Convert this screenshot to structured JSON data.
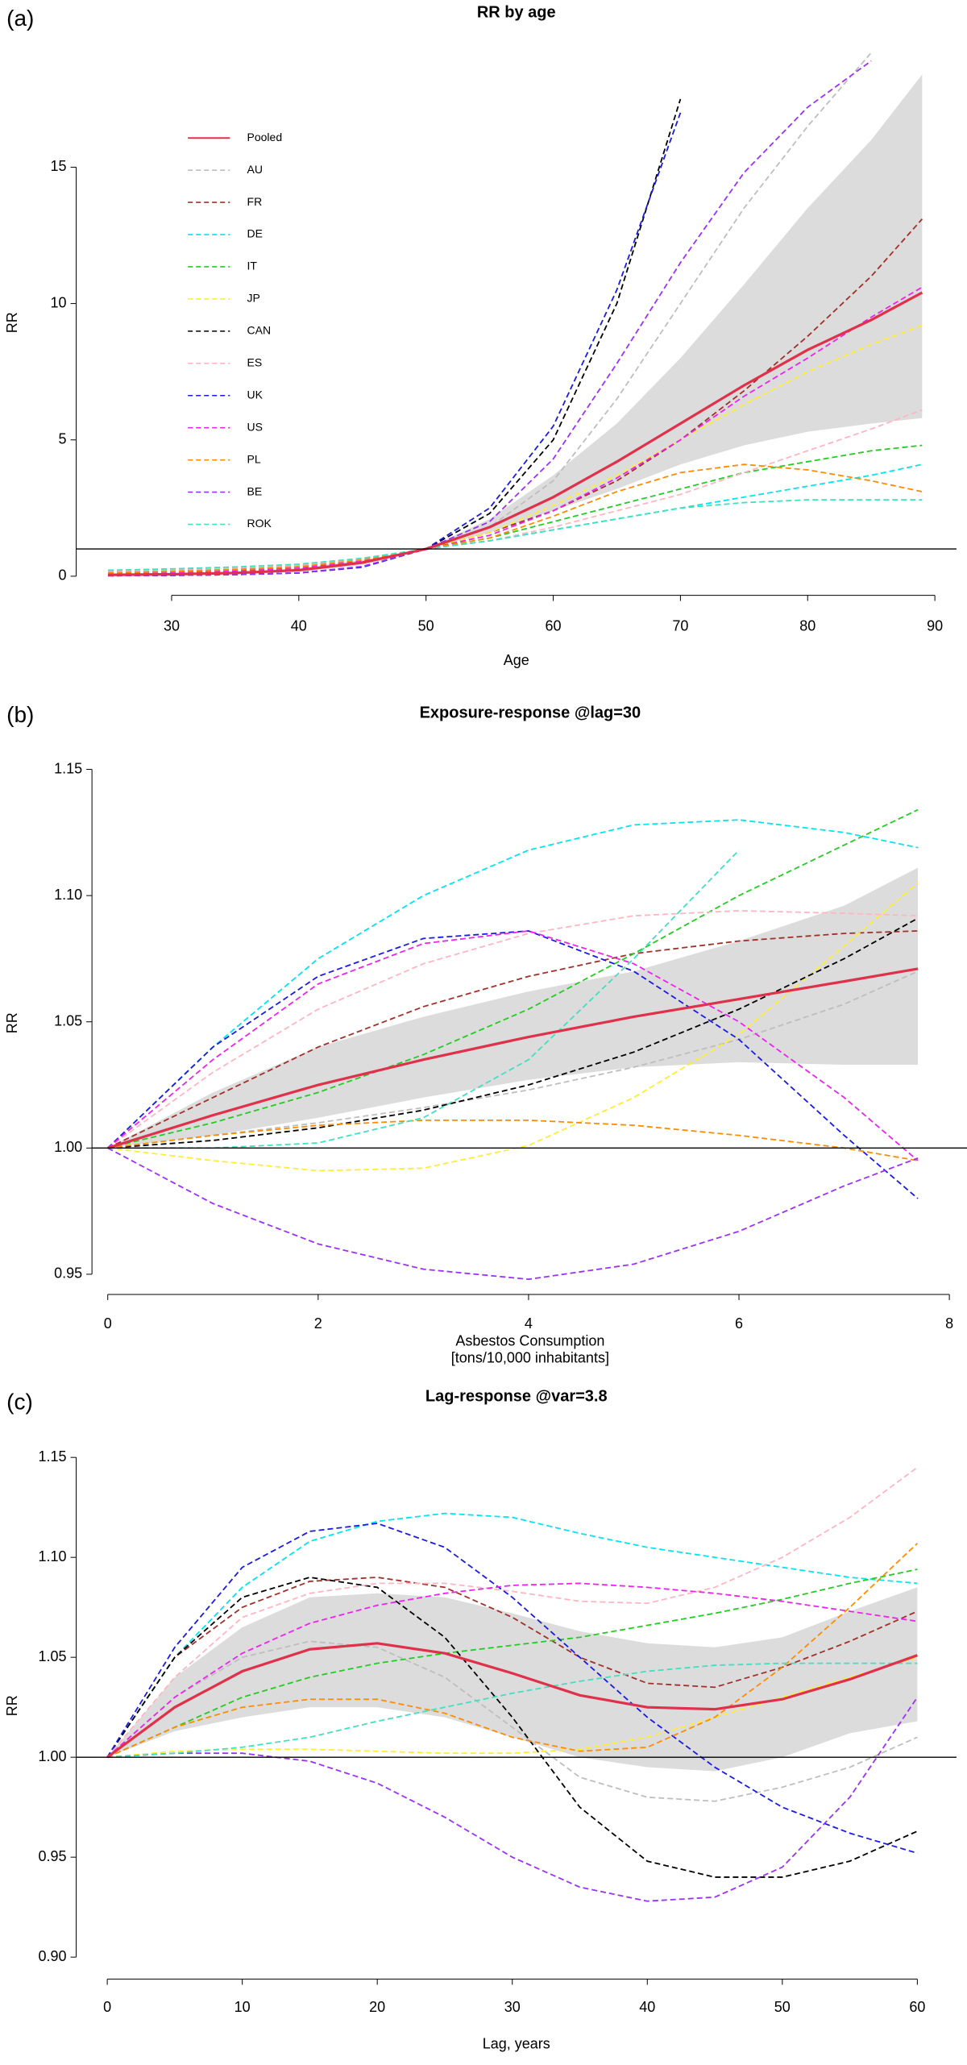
{
  "chart_data": [
    {
      "type": "line",
      "panel_label": "(a)",
      "title": "RR by age",
      "xlabel": [
        "Age"
      ],
      "ylabel": "RR",
      "x": [
        25,
        30,
        35,
        40,
        45,
        50,
        55,
        60,
        65,
        70,
        75,
        80,
        85,
        89
      ],
      "xlim": [
        22.5,
        91.7
      ],
      "ylim": [
        -0.7,
        19.3
      ],
      "xticks": [
        30,
        40,
        50,
        60,
        70,
        80,
        90
      ],
      "yticks": [
        0,
        5,
        10,
        15
      ],
      "hline": 1,
      "legend": true,
      "legend_position": "upper left",
      "band": {
        "color": "#dcdcdc",
        "lower": [
          0.03,
          0.05,
          0.09,
          0.17,
          0.42,
          1,
          1.6,
          2.4,
          3.2,
          4.1,
          4.8,
          5.3,
          5.6,
          5.8
        ],
        "upper": [
          0.08,
          0.1,
          0.16,
          0.28,
          0.6,
          1,
          2.1,
          3.7,
          5.6,
          8,
          10.7,
          13.5,
          16,
          18.4
        ]
      },
      "series": [
        {
          "name": "Pooled",
          "color": "#e0304a",
          "dash": false,
          "values": [
            0.05,
            0.07,
            0.12,
            0.22,
            0.5,
            1,
            1.8,
            2.9,
            4.2,
            5.6,
            7,
            8.3,
            9.4,
            10.4
          ]
        },
        {
          "name": "AU",
          "color": "#bebebe",
          "dash": true,
          "values": [
            0.1,
            0.14,
            0.2,
            0.3,
            0.55,
            1,
            1.8,
            3.5,
            6.5,
            10,
            13.5,
            16.5,
            19.2,
            null
          ]
        },
        {
          "name": "FR",
          "color": "#a0302a",
          "dash": true,
          "values": [
            0.08,
            0.12,
            0.18,
            0.28,
            0.55,
            1,
            1.6,
            2.4,
            3.5,
            5,
            6.8,
            8.8,
            11,
            13.1
          ]
        },
        {
          "name": "DE",
          "color": "#00e5ee",
          "dash": true,
          "values": [
            0.2,
            0.25,
            0.32,
            0.42,
            0.65,
            1,
            1.3,
            1.7,
            2.1,
            2.5,
            2.9,
            3.3,
            3.7,
            4.1
          ]
        },
        {
          "name": "IT",
          "color": "#22cc22",
          "dash": true,
          "values": [
            0.15,
            0.2,
            0.27,
            0.38,
            0.62,
            1,
            1.4,
            2,
            2.6,
            3.2,
            3.8,
            4.2,
            4.6,
            4.8
          ]
        },
        {
          "name": "JP",
          "color": "#ffee33",
          "dash": true,
          "values": [
            0.1,
            0.14,
            0.2,
            0.3,
            0.56,
            1,
            1.6,
            2.6,
            3.7,
            5,
            6.3,
            7.5,
            8.5,
            9.2
          ]
        },
        {
          "name": "CAN",
          "color": "#000000",
          "dash": true,
          "values": [
            0.02,
            0.03,
            0.06,
            0.12,
            0.35,
            1,
            2.3,
            5,
            10,
            17.5,
            null,
            null,
            null,
            null
          ]
        },
        {
          "name": "ES",
          "color": "#ffb6c1",
          "dash": true,
          "values": [
            0.18,
            0.23,
            0.3,
            0.4,
            0.63,
            1,
            1.3,
            1.8,
            2.4,
            3,
            3.8,
            4.6,
            5.4,
            6.1
          ]
        },
        {
          "name": "UK",
          "color": "#1a1ae6",
          "dash": true,
          "values": [
            0.02,
            0.03,
            0.06,
            0.12,
            0.33,
            1,
            2.5,
            5.5,
            10.5,
            17,
            null,
            null,
            null,
            null
          ]
        },
        {
          "name": "US",
          "color": "#ee22ee",
          "dash": true,
          "values": [
            0.1,
            0.14,
            0.2,
            0.3,
            0.56,
            1,
            1.5,
            2.4,
            3.6,
            5,
            6.6,
            8,
            9.5,
            10.6
          ]
        },
        {
          "name": "PL",
          "color": "#ff8c00",
          "dash": true,
          "values": [
            0.12,
            0.17,
            0.24,
            0.35,
            0.6,
            1,
            1.4,
            2.2,
            3.1,
            3.8,
            4.1,
            3.9,
            3.5,
            3.1
          ]
        },
        {
          "name": "BE",
          "color": "#9b30ff",
          "dash": true,
          "values": [
            0.02,
            0.03,
            0.06,
            0.12,
            0.36,
            1,
            2,
            4.3,
            7.8,
            11.5,
            14.8,
            17.2,
            18.9,
            null
          ]
        },
        {
          "name": "ROK",
          "color": "#40e0c0",
          "dash": true,
          "values": [
            0.22,
            0.27,
            0.34,
            0.44,
            0.66,
            1,
            1.3,
            1.7,
            2.1,
            2.5,
            2.7,
            2.8,
            2.8,
            2.8
          ]
        }
      ]
    },
    {
      "type": "line",
      "panel_label": "(b)",
      "title": "Exposure-response @lag=30",
      "xlabel": [
        "Asbestos Consumption",
        "[tons/10,000 inhabitants]"
      ],
      "ylabel": "RR",
      "x": [
        0,
        1,
        2,
        3,
        4,
        5,
        6,
        7,
        7.7
      ],
      "xlim": [
        -0.15,
        8.18
      ],
      "ylim": [
        0.942,
        1.157
      ],
      "xticks": [
        0,
        2,
        4,
        6,
        8
      ],
      "yticks": [
        0.95,
        {
          "value": 1,
          "label": "1.00"
        },
        1.05,
        {
          "value": 1.1,
          "label": "1.10"
        },
        1.15
      ],
      "hline": 1,
      "legend": false,
      "band": {
        "color": "#dcdcdc",
        "lower": [
          1,
          1.005,
          1.012,
          1.02,
          1.027,
          1.032,
          1.034,
          1.033,
          1.033
        ],
        "upper": [
          1,
          1.022,
          1.04,
          1.052,
          1.062,
          1.07,
          1.082,
          1.096,
          1.111
        ]
      },
      "series": [
        {
          "name": "Pooled",
          "color": "#e0304a",
          "dash": false,
          "values": [
            1,
            1.013,
            1.025,
            1.035,
            1.044,
            1.052,
            1.059,
            1.066,
            1.071
          ]
        },
        {
          "name": "AU",
          "color": "#bebebe",
          "dash": true,
          "values": [
            1,
            1.005,
            1.01,
            1.016,
            1.023,
            1.032,
            1.043,
            1.057,
            1.07
          ]
        },
        {
          "name": "FR",
          "color": "#a0302a",
          "dash": true,
          "values": [
            1,
            1.02,
            1.04,
            1.056,
            1.068,
            1.077,
            1.082,
            1.085,
            1.086
          ]
        },
        {
          "name": "DE",
          "color": "#00e5ee",
          "dash": true,
          "values": [
            1,
            1.04,
            1.075,
            1.1,
            1.118,
            1.128,
            1.13,
            1.125,
            1.119
          ]
        },
        {
          "name": "IT",
          "color": "#22cc22",
          "dash": true,
          "values": [
            1,
            1.01,
            1.022,
            1.037,
            1.055,
            1.077,
            1.1,
            1.12,
            1.134
          ]
        },
        {
          "name": "JP",
          "color": "#ffee33",
          "dash": true,
          "values": [
            1,
            0.995,
            0.991,
            0.992,
            1.001,
            1.02,
            1.045,
            1.08,
            1.105
          ]
        },
        {
          "name": "CAN",
          "color": "#000000",
          "dash": true,
          "values": [
            1,
            1.003,
            1.008,
            1.015,
            1.025,
            1.038,
            1.055,
            1.075,
            1.091
          ]
        },
        {
          "name": "ES",
          "color": "#ffb6c1",
          "dash": true,
          "values": [
            1,
            1.03,
            1.055,
            1.073,
            1.085,
            1.092,
            1.094,
            1.093,
            1.092
          ]
        },
        {
          "name": "UK",
          "color": "#1a1ae6",
          "dash": true,
          "values": [
            1,
            1.04,
            1.068,
            1.083,
            1.086,
            1.07,
            1.043,
            1.005,
            0.98
          ]
        },
        {
          "name": "US",
          "color": "#ee22ee",
          "dash": true,
          "values": [
            1,
            1.035,
            1.065,
            1.081,
            1.086,
            1.073,
            1.05,
            1.02,
            0.995
          ]
        },
        {
          "name": "PL",
          "color": "#ff8c00",
          "dash": true,
          "values": [
            1,
            1.005,
            1.009,
            1.011,
            1.011,
            1.009,
            1.005,
            1,
            0.995
          ]
        },
        {
          "name": "BE",
          "color": "#9b30ff",
          "dash": true,
          "values": [
            1,
            0.978,
            0.962,
            0.952,
            0.948,
            0.954,
            0.967,
            0.985,
            0.996
          ]
        },
        {
          "name": "ROK",
          "color": "#40e0c0",
          "dash": true,
          "values": [
            1,
            1,
            1.002,
            1.012,
            1.035,
            1.075,
            1.118,
            null,
            null
          ]
        }
      ]
    },
    {
      "type": "line",
      "panel_label": "(c)",
      "title": "Lag-response @var=3.8",
      "xlabel": [
        "Lag, years"
      ],
      "ylabel": "RR",
      "x": [
        0,
        5,
        10,
        15,
        20,
        25,
        30,
        35,
        40,
        45,
        50,
        55,
        60
      ],
      "xlim": [
        -2.3,
        62.9
      ],
      "ylim": [
        0.889,
        1.1625
      ],
      "xticks": [
        0,
        10,
        20,
        30,
        40,
        50,
        60
      ],
      "yticks": [
        {
          "value": 0.9,
          "label": "0.90"
        },
        0.95,
        {
          "value": 1,
          "label": "1.00"
        },
        1.05,
        {
          "value": 1.1,
          "label": "1.10"
        },
        1.15
      ],
      "hline": 1,
      "legend": false,
      "band": {
        "color": "#dcdcdc",
        "lower": [
          1,
          1.013,
          1.02,
          1.025,
          1.025,
          1.02,
          1.01,
          1,
          0.995,
          0.993,
          1,
          1.012,
          1.018
        ],
        "upper": [
          1,
          1.04,
          1.065,
          1.08,
          1.082,
          1.08,
          1.072,
          1.063,
          1.057,
          1.055,
          1.06,
          1.073,
          1.085
        ]
      },
      "series": [
        {
          "name": "Pooled",
          "color": "#e0304a",
          "dash": false,
          "values": [
            1,
            1.025,
            1.043,
            1.054,
            1.057,
            1.052,
            1.042,
            1.031,
            1.025,
            1.024,
            1.029,
            1.039,
            1.051
          ]
        },
        {
          "name": "AU",
          "color": "#bebebe",
          "dash": true,
          "values": [
            1,
            1.03,
            1.05,
            1.058,
            1.055,
            1.04,
            1.015,
            0.99,
            0.98,
            0.978,
            0.985,
            0.995,
            1.01
          ]
        },
        {
          "name": "FR",
          "color": "#a0302a",
          "dash": true,
          "values": [
            1,
            1.05,
            1.075,
            1.088,
            1.09,
            1.085,
            1.07,
            1.05,
            1.037,
            1.035,
            1.045,
            1.058,
            1.073
          ]
        },
        {
          "name": "DE",
          "color": "#00e5ee",
          "dash": true,
          "values": [
            1,
            1.05,
            1.085,
            1.108,
            1.118,
            1.122,
            1.12,
            1.112,
            1.105,
            1.1,
            1.095,
            1.09,
            1.087
          ]
        },
        {
          "name": "IT",
          "color": "#22cc22",
          "dash": true,
          "values": [
            1,
            1.015,
            1.03,
            1.04,
            1.047,
            1.052,
            1.056,
            1.06,
            1.066,
            1.072,
            1.079,
            1.087,
            1.094
          ]
        },
        {
          "name": "JP",
          "color": "#ffee33",
          "dash": true,
          "values": [
            1,
            1.003,
            1.004,
            1.004,
            1.003,
            1.002,
            1.002,
            1.004,
            1.01,
            1.02,
            1.03,
            1.04,
            1.05
          ]
        },
        {
          "name": "CAN",
          "color": "#000000",
          "dash": true,
          "values": [
            1,
            1.05,
            1.08,
            1.09,
            1.085,
            1.06,
            1.02,
            0.975,
            0.948,
            0.94,
            0.94,
            0.948,
            0.963
          ]
        },
        {
          "name": "ES",
          "color": "#ffb6c1",
          "dash": true,
          "values": [
            1,
            1.04,
            1.07,
            1.082,
            1.087,
            1.087,
            1.083,
            1.078,
            1.077,
            1.085,
            1.1,
            1.12,
            1.145
          ]
        },
        {
          "name": "UK",
          "color": "#1a1ae6",
          "dash": true,
          "values": [
            1,
            1.055,
            1.095,
            1.113,
            1.117,
            1.105,
            1.08,
            1.05,
            1.02,
            0.995,
            0.975,
            0.962,
            0.952
          ]
        },
        {
          "name": "US",
          "color": "#ee22ee",
          "dash": true,
          "values": [
            1,
            1.03,
            1.052,
            1.067,
            1.076,
            1.082,
            1.086,
            1.087,
            1.085,
            1.082,
            1.078,
            1.073,
            1.068
          ]
        },
        {
          "name": "PL",
          "color": "#ff8c00",
          "dash": true,
          "values": [
            1,
            1.015,
            1.025,
            1.029,
            1.029,
            1.022,
            1.01,
            1.003,
            1.005,
            1.02,
            1.045,
            1.075,
            1.107
          ]
        },
        {
          "name": "BE",
          "color": "#9b30ff",
          "dash": true,
          "values": [
            1,
            1.002,
            1.002,
            0.998,
            0.987,
            0.97,
            0.95,
            0.935,
            0.928,
            0.93,
            0.945,
            0.98,
            1.03
          ]
        },
        {
          "name": "ROK",
          "color": "#40e0c0",
          "dash": true,
          "values": [
            1,
            1.002,
            1.005,
            1.01,
            1.018,
            1.025,
            1.032,
            1.038,
            1.043,
            1.046,
            1.047,
            1.047,
            1.047
          ]
        }
      ]
    }
  ]
}
